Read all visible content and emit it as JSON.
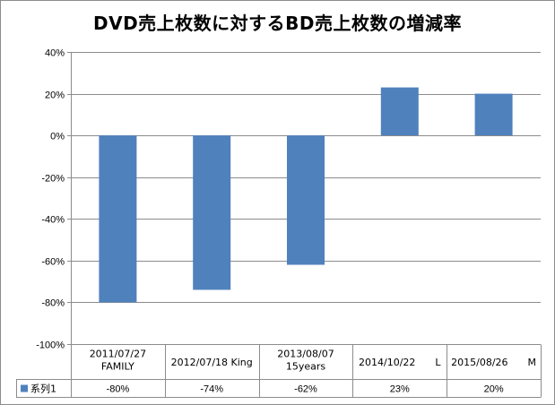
{
  "chart_data": {
    "type": "bar",
    "title": "DVD売上枚数に対するBD売上枚数の増減率",
    "categories": [
      [
        "2011/07/27",
        "FAMILY"
      ],
      [
        "2012/07/18 King"
      ],
      [
        "2013/08/07",
        "15years"
      ],
      [
        "2014/10/22　　L"
      ],
      [
        "2015/08/26　　M"
      ]
    ],
    "series": [
      {
        "name": "系列1",
        "values": [
          -0.8,
          -0.74,
          -0.62,
          0.23,
          0.2
        ],
        "color": "#4f81bd"
      }
    ],
    "value_labels": [
      "-80%",
      "-74%",
      "-62%",
      "23%",
      "20%"
    ],
    "ylim": [
      -1.0,
      0.4
    ],
    "yticks": [
      0.4,
      0.2,
      0.0,
      -0.2,
      -0.4,
      -0.6,
      -0.8,
      -1.0
    ],
    "ytick_labels": [
      "40%",
      "20%",
      "0%",
      "-20%",
      "-40%",
      "-60%",
      "-80%",
      "-100%"
    ],
    "grid": true,
    "legend": "data-table",
    "xlabel": "",
    "ylabel": ""
  }
}
